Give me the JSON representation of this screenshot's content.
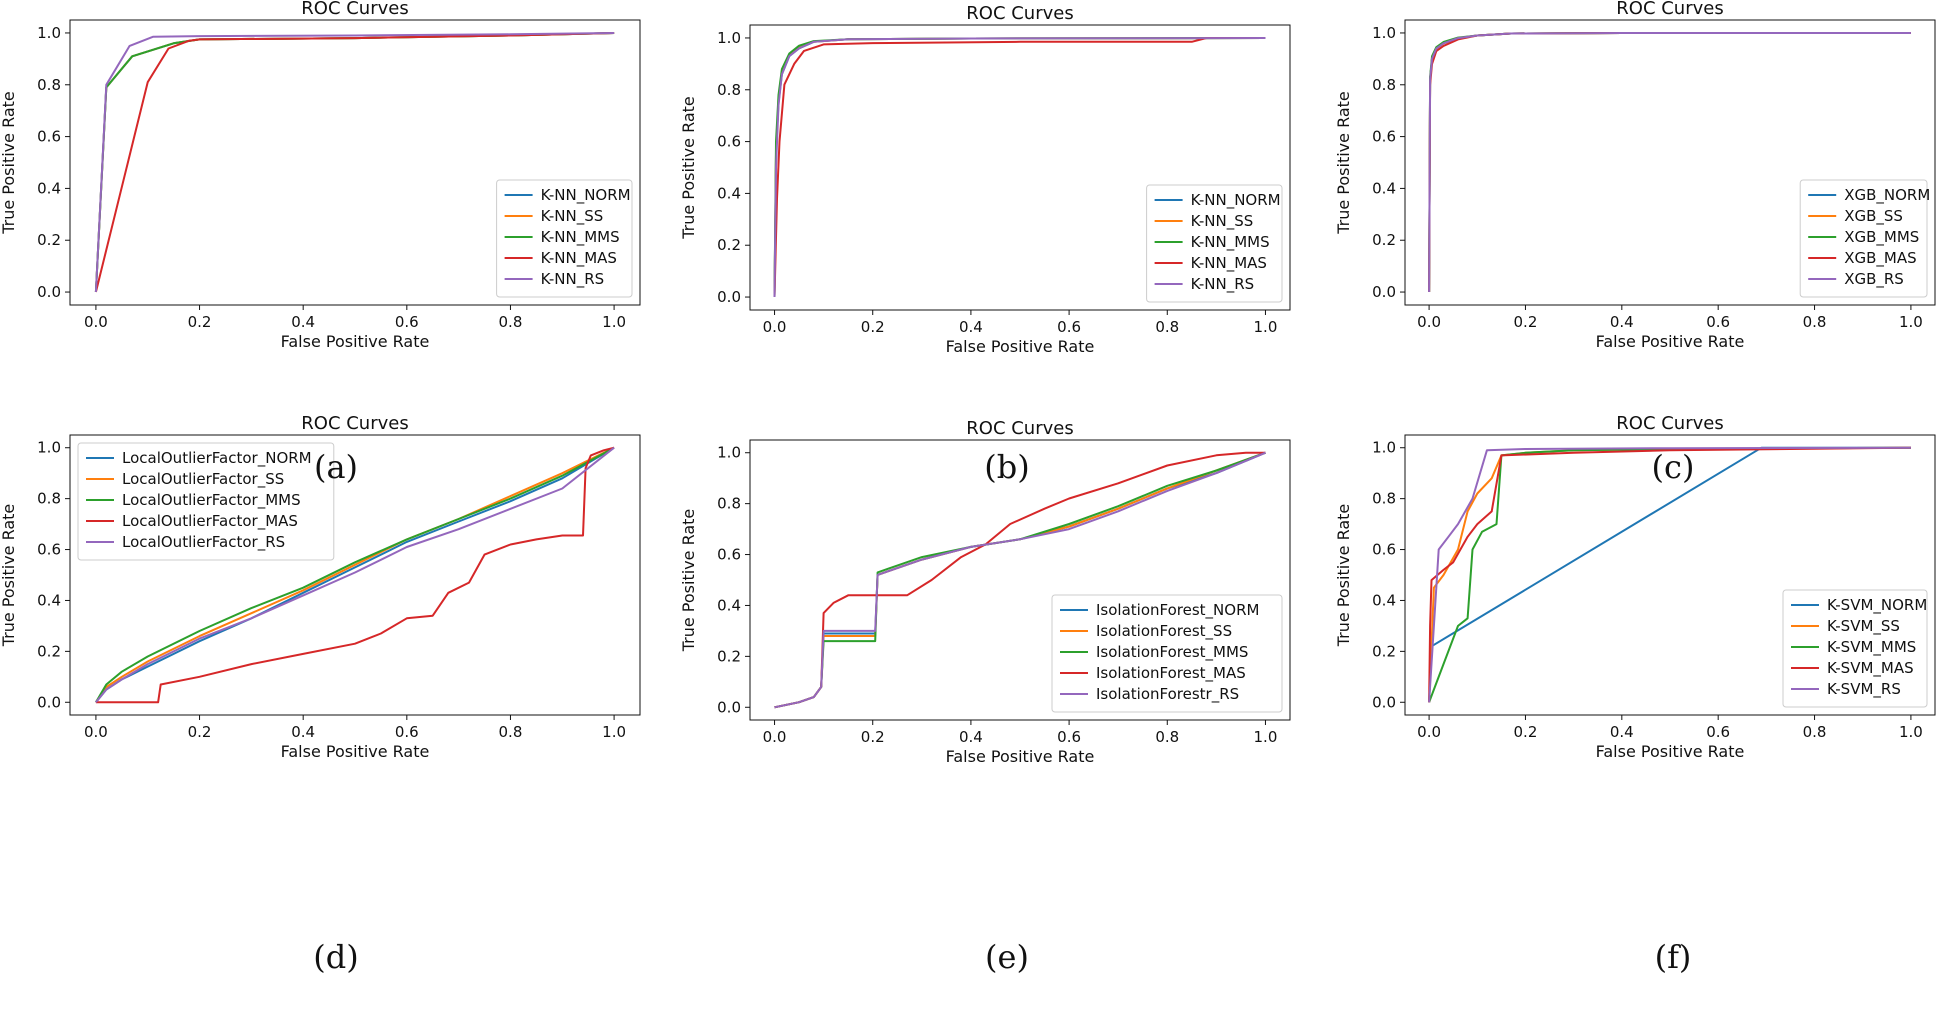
{
  "colors": {
    "blue": "#1f77b4",
    "orange": "#ff7f0e",
    "green": "#2ca02c",
    "red": "#d62728",
    "purple": "#9467bd"
  },
  "chart_data": [
    {
      "type": "line",
      "caption": "(a)",
      "title": "ROC Curves",
      "xlabel": "False Positive Rate",
      "ylabel": "True Positive Rate",
      "xlim": [
        0,
        1
      ],
      "ylim": [
        0,
        1
      ],
      "xticks": [
        "0.0",
        "0.2",
        "0.4",
        "0.6",
        "0.8",
        "1.0"
      ],
      "yticks": [
        "0.0",
        "0.2",
        "0.4",
        "0.6",
        "0.8",
        "1.0"
      ],
      "legend_position": "lower-right",
      "series": [
        {
          "name": "K-NN_NORM",
          "color": "blue",
          "x": [
            0,
            0.02,
            0.07,
            0.15,
            0.2,
            0.5,
            0.8,
            1.0
          ],
          "y": [
            0,
            0.79,
            0.91,
            0.96,
            0.975,
            0.98,
            0.99,
            1.0
          ]
        },
        {
          "name": "K-NN_SS",
          "color": "orange",
          "x": [
            0,
            0.02,
            0.07,
            0.15,
            0.2,
            0.5,
            0.8,
            1.0
          ],
          "y": [
            0,
            0.79,
            0.91,
            0.96,
            0.975,
            0.98,
            0.99,
            1.0
          ]
        },
        {
          "name": "K-NN_MMS",
          "color": "green",
          "x": [
            0,
            0.02,
            0.07,
            0.15,
            0.2,
            0.5,
            0.8,
            1.0
          ],
          "y": [
            0,
            0.79,
            0.91,
            0.96,
            0.975,
            0.98,
            0.99,
            1.0
          ]
        },
        {
          "name": "K-NN_MAS",
          "color": "red",
          "x": [
            0,
            0.1,
            0.14,
            0.18,
            0.2,
            0.5,
            0.8,
            1.0
          ],
          "y": [
            0,
            0.81,
            0.94,
            0.97,
            0.975,
            0.98,
            0.99,
            1.0
          ]
        },
        {
          "name": "K-NN_RS",
          "color": "purple",
          "x": [
            0,
            0.02,
            0.065,
            0.11,
            0.2,
            0.5,
            0.8,
            1.0
          ],
          "y": [
            0,
            0.8,
            0.95,
            0.985,
            0.988,
            0.99,
            0.995,
            1.0
          ]
        }
      ]
    },
    {
      "type": "line",
      "caption": "(b)",
      "title": "ROC Curves",
      "xlabel": "False Positive Rate",
      "ylabel": "True Positive Rate",
      "xlim": [
        0,
        1
      ],
      "ylim": [
        0,
        1
      ],
      "xticks": [
        "0.0",
        "0.2",
        "0.4",
        "0.6",
        "0.8",
        "1.0"
      ],
      "yticks": [
        "0.0",
        "0.2",
        "0.4",
        "0.6",
        "0.8",
        "1.0"
      ],
      "legend_position": "lower-right",
      "series": [
        {
          "name": "K-NN_NORM",
          "color": "blue",
          "x": [
            0,
            0.003,
            0.008,
            0.015,
            0.03,
            0.05,
            0.08,
            0.15,
            0.4,
            1.0
          ],
          "y": [
            0,
            0.55,
            0.75,
            0.86,
            0.93,
            0.96,
            0.985,
            0.995,
            0.998,
            1.0
          ]
        },
        {
          "name": "K-NN_SS",
          "color": "orange",
          "x": [
            0,
            0.003,
            0.008,
            0.015,
            0.03,
            0.05,
            0.08,
            0.15,
            0.4,
            1.0
          ],
          "y": [
            0,
            0.55,
            0.76,
            0.87,
            0.935,
            0.965,
            0.985,
            0.995,
            0.998,
            1.0
          ]
        },
        {
          "name": "K-NN_MMS",
          "color": "green",
          "x": [
            0,
            0.003,
            0.008,
            0.015,
            0.03,
            0.05,
            0.08,
            0.15,
            0.4,
            1.0
          ],
          "y": [
            0,
            0.6,
            0.78,
            0.88,
            0.94,
            0.97,
            0.988,
            0.995,
            0.998,
            1.0
          ]
        },
        {
          "name": "K-NN_MAS",
          "color": "red",
          "x": [
            0,
            0.005,
            0.01,
            0.02,
            0.04,
            0.06,
            0.1,
            0.2,
            0.5,
            0.85,
            0.88,
            1.0
          ],
          "y": [
            0,
            0.38,
            0.6,
            0.82,
            0.9,
            0.95,
            0.975,
            0.98,
            0.985,
            0.985,
            1.0,
            1.0
          ]
        },
        {
          "name": "K-NN_RS",
          "color": "purple",
          "x": [
            0,
            0.003,
            0.008,
            0.015,
            0.03,
            0.05,
            0.08,
            0.15,
            0.4,
            1.0
          ],
          "y": [
            0,
            0.5,
            0.74,
            0.86,
            0.93,
            0.96,
            0.985,
            0.995,
            0.998,
            1.0
          ]
        }
      ]
    },
    {
      "type": "line",
      "caption": "(c)",
      "title": "ROC Curves",
      "xlabel": "False Positive Rate",
      "ylabel": "True Positive Rate",
      "xlim": [
        0,
        1
      ],
      "ylim": [
        0,
        1
      ],
      "xticks": [
        "0.0",
        "0.2",
        "0.4",
        "0.6",
        "0.8",
        "1.0"
      ],
      "yticks": [
        "0.0",
        "0.2",
        "0.4",
        "0.6",
        "0.8",
        "1.0"
      ],
      "legend_position": "lower-right",
      "series": [
        {
          "name": "XGB_NORM",
          "color": "blue",
          "x": [
            0,
            0.002,
            0.006,
            0.015,
            0.03,
            0.06,
            0.1,
            0.17,
            0.4,
            1.0
          ],
          "y": [
            0,
            0.82,
            0.9,
            0.94,
            0.96,
            0.98,
            0.99,
            0.998,
            1.0,
            1.0
          ]
        },
        {
          "name": "XGB_SS",
          "color": "orange",
          "x": [
            0,
            0.002,
            0.006,
            0.015,
            0.03,
            0.06,
            0.1,
            0.17,
            0.4,
            1.0
          ],
          "y": [
            0,
            0.82,
            0.9,
            0.94,
            0.96,
            0.98,
            0.99,
            0.998,
            1.0,
            1.0
          ]
        },
        {
          "name": "XGB_MMS",
          "color": "green",
          "x": [
            0,
            0.002,
            0.006,
            0.015,
            0.03,
            0.06,
            0.1,
            0.17,
            0.4,
            1.0
          ],
          "y": [
            0,
            0.83,
            0.91,
            0.945,
            0.965,
            0.982,
            0.99,
            0.998,
            1.0,
            1.0
          ]
        },
        {
          "name": "XGB_MAS",
          "color": "red",
          "x": [
            0,
            0.002,
            0.006,
            0.015,
            0.03,
            0.06,
            0.1,
            0.17,
            0.4,
            1.0
          ],
          "y": [
            0,
            0.8,
            0.88,
            0.93,
            0.95,
            0.975,
            0.99,
            0.998,
            1.0,
            1.0
          ]
        },
        {
          "name": "XGB_RS",
          "color": "purple",
          "x": [
            0,
            0.002,
            0.006,
            0.015,
            0.03,
            0.06,
            0.1,
            0.17,
            0.4,
            1.0
          ],
          "y": [
            0,
            0.82,
            0.9,
            0.94,
            0.96,
            0.98,
            0.99,
            0.998,
            1.0,
            1.0
          ]
        }
      ]
    },
    {
      "type": "line",
      "caption": "(d)",
      "title": "ROC Curves",
      "xlabel": "False Positive Rate",
      "ylabel": "True Positive Rate",
      "xlim": [
        0,
        1
      ],
      "ylim": [
        0,
        1
      ],
      "xticks": [
        "0.0",
        "0.2",
        "0.4",
        "0.6",
        "0.8",
        "1.0"
      ],
      "yticks": [
        "0.0",
        "0.2",
        "0.4",
        "0.6",
        "0.8",
        "1.0"
      ],
      "legend_position": "upper-left",
      "series": [
        {
          "name": "LocalOutlierFactor_NORM",
          "color": "blue",
          "x": [
            0,
            0.02,
            0.05,
            0.1,
            0.2,
            0.3,
            0.4,
            0.5,
            0.6,
            0.7,
            0.8,
            0.9,
            1.0
          ],
          "y": [
            0,
            0.05,
            0.09,
            0.14,
            0.24,
            0.33,
            0.43,
            0.53,
            0.63,
            0.71,
            0.79,
            0.88,
            1.0
          ]
        },
        {
          "name": "LocalOutlierFactor_SS",
          "color": "orange",
          "x": [
            0,
            0.02,
            0.05,
            0.1,
            0.2,
            0.3,
            0.4,
            0.5,
            0.6,
            0.7,
            0.8,
            0.9,
            1.0
          ],
          "y": [
            0,
            0.06,
            0.1,
            0.16,
            0.26,
            0.35,
            0.44,
            0.54,
            0.64,
            0.72,
            0.81,
            0.9,
            1.0
          ]
        },
        {
          "name": "LocalOutlierFactor_MMS",
          "color": "green",
          "x": [
            0,
            0.02,
            0.05,
            0.1,
            0.2,
            0.3,
            0.4,
            0.5,
            0.6,
            0.7,
            0.8,
            0.9,
            1.0
          ],
          "y": [
            0,
            0.07,
            0.12,
            0.18,
            0.28,
            0.37,
            0.45,
            0.55,
            0.64,
            0.72,
            0.8,
            0.89,
            1.0
          ]
        },
        {
          "name": "LocalOutlierFactor_MAS",
          "color": "red",
          "x": [
            0,
            0.12,
            0.125,
            0.2,
            0.3,
            0.4,
            0.5,
            0.55,
            0.6,
            0.65,
            0.68,
            0.72,
            0.75,
            0.8,
            0.85,
            0.9,
            0.94,
            0.945,
            0.955,
            0.98,
            1.0
          ],
          "y": [
            0,
            0,
            0.07,
            0.1,
            0.15,
            0.19,
            0.23,
            0.27,
            0.33,
            0.34,
            0.43,
            0.47,
            0.58,
            0.62,
            0.64,
            0.655,
            0.655,
            0.92,
            0.97,
            0.99,
            1.0
          ]
        },
        {
          "name": "LocalOutlierFactor_RS",
          "color": "purple",
          "x": [
            0,
            0.02,
            0.05,
            0.1,
            0.2,
            0.3,
            0.4,
            0.5,
            0.6,
            0.7,
            0.8,
            0.9,
            1.0
          ],
          "y": [
            0,
            0.05,
            0.09,
            0.15,
            0.25,
            0.33,
            0.42,
            0.51,
            0.61,
            0.68,
            0.76,
            0.84,
            1.0
          ]
        }
      ]
    },
    {
      "type": "line",
      "caption": "(e)",
      "title": "ROC Curves",
      "xlabel": "False Positive Rate",
      "ylabel": "True Positive Rate",
      "xlim": [
        0,
        1
      ],
      "ylim": [
        0,
        1
      ],
      "xticks": [
        "0.0",
        "0.2",
        "0.4",
        "0.6",
        "0.8",
        "1.0"
      ],
      "yticks": [
        "0.0",
        "0.2",
        "0.4",
        "0.6",
        "0.8",
        "1.0"
      ],
      "legend_position": "lower-right",
      "series": [
        {
          "name": "IsolationForest_NORM",
          "color": "blue",
          "x": [
            0,
            0.05,
            0.08,
            0.095,
            0.1,
            0.205,
            0.21,
            0.3,
            0.4,
            0.5,
            0.6,
            0.7,
            0.8,
            0.9,
            1.0
          ],
          "y": [
            0,
            0.02,
            0.04,
            0.08,
            0.29,
            0.29,
            0.52,
            0.58,
            0.63,
            0.66,
            0.71,
            0.78,
            0.86,
            0.92,
            1.0
          ]
        },
        {
          "name": "IsolationForest_SS",
          "color": "orange",
          "x": [
            0,
            0.05,
            0.08,
            0.095,
            0.1,
            0.205,
            0.21,
            0.3,
            0.4,
            0.5,
            0.6,
            0.7,
            0.8,
            0.9,
            1.0
          ],
          "y": [
            0,
            0.02,
            0.04,
            0.08,
            0.28,
            0.28,
            0.52,
            0.58,
            0.63,
            0.66,
            0.71,
            0.78,
            0.86,
            0.93,
            1.0
          ]
        },
        {
          "name": "IsolationForest_MMS",
          "color": "green",
          "x": [
            0,
            0.05,
            0.08,
            0.095,
            0.1,
            0.205,
            0.21,
            0.3,
            0.4,
            0.5,
            0.6,
            0.7,
            0.8,
            0.9,
            1.0
          ],
          "y": [
            0,
            0.02,
            0.04,
            0.08,
            0.26,
            0.26,
            0.53,
            0.59,
            0.63,
            0.66,
            0.72,
            0.79,
            0.87,
            0.93,
            1.0
          ]
        },
        {
          "name": "IsolationForest_MAS",
          "color": "red",
          "x": [
            0,
            0.05,
            0.08,
            0.095,
            0.1,
            0.12,
            0.15,
            0.2,
            0.27,
            0.32,
            0.38,
            0.43,
            0.48,
            0.55,
            0.6,
            0.7,
            0.8,
            0.9,
            0.96,
            1.0
          ],
          "y": [
            0,
            0.02,
            0.04,
            0.08,
            0.37,
            0.41,
            0.44,
            0.44,
            0.44,
            0.5,
            0.59,
            0.64,
            0.72,
            0.78,
            0.82,
            0.88,
            0.95,
            0.99,
            1.0,
            1.0
          ]
        },
        {
          "name": "IsolationForestr_RS",
          "color": "purple",
          "x": [
            0,
            0.05,
            0.08,
            0.095,
            0.1,
            0.205,
            0.21,
            0.3,
            0.4,
            0.5,
            0.6,
            0.7,
            0.8,
            0.9,
            1.0
          ],
          "y": [
            0,
            0.02,
            0.04,
            0.08,
            0.3,
            0.3,
            0.52,
            0.58,
            0.63,
            0.66,
            0.7,
            0.77,
            0.85,
            0.92,
            1.0
          ]
        }
      ]
    },
    {
      "type": "line",
      "caption": "(f)",
      "title": "ROC Curves",
      "xlabel": "False Positive Rate",
      "ylabel": "True Positive Rate",
      "xlim": [
        0,
        1
      ],
      "ylim": [
        0,
        1
      ],
      "xticks": [
        "0.0",
        "0.2",
        "0.4",
        "0.6",
        "0.8",
        "1.0"
      ],
      "yticks": [
        "0.0",
        "0.2",
        "0.4",
        "0.6",
        "0.8",
        "1.0"
      ],
      "legend_position": "lower-right",
      "series": [
        {
          "name": "K-SVM_NORM",
          "color": "blue",
          "x": [
            0,
            0.005,
            0.69,
            1.0
          ],
          "y": [
            0,
            0.22,
            1.0,
            1.0
          ]
        },
        {
          "name": "K-SVM_SS",
          "color": "orange",
          "x": [
            0,
            0.01,
            0.03,
            0.06,
            0.08,
            0.1,
            0.13,
            0.15,
            0.2,
            0.3,
            0.5,
            1.0
          ],
          "y": [
            0,
            0.45,
            0.5,
            0.6,
            0.75,
            0.82,
            0.88,
            0.97,
            0.98,
            0.99,
            0.995,
            1.0
          ]
        },
        {
          "name": "K-SVM_MMS",
          "color": "green",
          "x": [
            0,
            0.01,
            0.03,
            0.06,
            0.08,
            0.09,
            0.11,
            0.14,
            0.15,
            0.2,
            0.3,
            0.5,
            1.0
          ],
          "y": [
            0,
            0.05,
            0.15,
            0.3,
            0.33,
            0.6,
            0.67,
            0.7,
            0.97,
            0.98,
            0.99,
            0.995,
            1.0
          ]
        },
        {
          "name": "K-SVM_MAS",
          "color": "red",
          "x": [
            0,
            0.002,
            0.005,
            0.03,
            0.05,
            0.08,
            0.1,
            0.13,
            0.15,
            0.3,
            0.5,
            1.0
          ],
          "y": [
            0,
            0.3,
            0.48,
            0.52,
            0.55,
            0.65,
            0.7,
            0.75,
            0.97,
            0.98,
            0.99,
            1.0
          ]
        },
        {
          "name": "K-SVM_RS",
          "color": "purple",
          "x": [
            0,
            0.01,
            0.02,
            0.04,
            0.06,
            0.09,
            0.12,
            0.2,
            0.5,
            1.0
          ],
          "y": [
            0,
            0.3,
            0.6,
            0.65,
            0.7,
            0.8,
            0.99,
            0.995,
            0.998,
            1.0
          ]
        }
      ]
    }
  ]
}
